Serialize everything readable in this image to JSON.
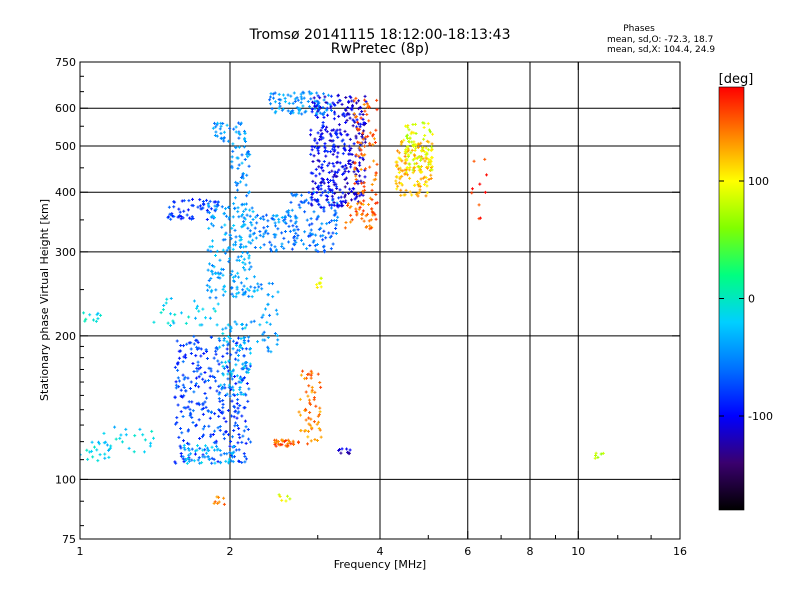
{
  "chart_data": {
    "type": "scatter",
    "title": "Tromsø 20141115 18:12:00-18:13:43",
    "subtitle": "RwPretec (8p)",
    "phase_info": {
      "heading": "Phases",
      "line_o": "mean, sd,O: -72.3, 18.7",
      "line_x": "mean, sd,X: 104.4, 24.9"
    },
    "xlabel": "Frequency [MHz]",
    "ylabel": "Stationary phase Virtual Height [km]",
    "x_scale": "log",
    "y_scale": "log",
    "xlim": [
      1,
      16
    ],
    "ylim": [
      75,
      750
    ],
    "xticks": [
      {
        "value": 1,
        "label": "1"
      },
      {
        "value": 2,
        "label": "2"
      },
      {
        "value": 4,
        "label": "4"
      },
      {
        "value": 6,
        "label": "6"
      },
      {
        "value": 8,
        "label": "8"
      },
      {
        "value": 10,
        "label": "10"
      },
      {
        "value": 16,
        "label": "16"
      }
    ],
    "yticks": [
      {
        "value": 75,
        "label": "75"
      },
      {
        "value": 100,
        "label": "100"
      },
      {
        "value": 200,
        "label": "200"
      },
      {
        "value": 300,
        "label": "300"
      },
      {
        "value": 400,
        "label": "400"
      },
      {
        "value": 500,
        "label": "500"
      },
      {
        "value": 600,
        "label": "600"
      },
      {
        "value": 750,
        "label": "750"
      }
    ],
    "grid_x": [
      2,
      4,
      6,
      8,
      10
    ],
    "grid_y": [
      100,
      200,
      300,
      400,
      500,
      600
    ],
    "grid": true,
    "colorbar": {
      "label": "[deg]",
      "range": [
        -180,
        180
      ],
      "ticks": [
        {
          "value": 100,
          "label": "100"
        },
        {
          "value": 0,
          "label": "0"
        },
        {
          "value": -100,
          "label": "-100"
        }
      ],
      "stops": [
        "#000000",
        "#3a006e",
        "#0000ff",
        "#0070ff",
        "#00d0ff",
        "#00ff80",
        "#80ff00",
        "#ffff00",
        "#ff8000",
        "#ff0000"
      ]
    },
    "clusters": [
      {
        "fmin": 1.0,
        "fmax": 1.1,
        "hmin": 212,
        "hmax": 225,
        "phase": -10,
        "count": 10
      },
      {
        "fmin": 1.0,
        "fmax": 1.15,
        "hmin": 108,
        "hmax": 125,
        "phase": -15,
        "count": 22
      },
      {
        "fmin": 1.15,
        "fmax": 1.45,
        "hmin": 112,
        "hmax": 130,
        "phase": -20,
        "count": 20
      },
      {
        "fmin": 1.35,
        "fmax": 1.9,
        "hmin": 210,
        "hmax": 240,
        "phase": -20,
        "count": 30
      },
      {
        "fmin": 1.5,
        "fmax": 1.9,
        "hmin": 350,
        "hmax": 390,
        "phase": -80,
        "count": 60
      },
      {
        "fmin": 1.55,
        "fmax": 2.2,
        "hmin": 108,
        "hmax": 200,
        "phase": -75,
        "count": 320
      },
      {
        "fmin": 1.9,
        "fmax": 2.2,
        "hmin": 150,
        "hmax": 215,
        "phase": -30,
        "count": 80
      },
      {
        "fmin": 1.6,
        "fmax": 2.05,
        "hmin": 108,
        "hmax": 118,
        "phase": -30,
        "count": 50
      },
      {
        "fmin": 1.8,
        "fmax": 2.25,
        "hmin": 240,
        "hmax": 380,
        "phase": -40,
        "count": 180
      },
      {
        "fmin": 1.85,
        "fmax": 2.15,
        "hmin": 505,
        "hmax": 560,
        "phase": -45,
        "count": 40
      },
      {
        "fmin": 2.0,
        "fmax": 2.2,
        "hmin": 380,
        "hmax": 500,
        "phase": -45,
        "count": 40
      },
      {
        "fmin": 2.2,
        "fmax": 2.6,
        "hmin": 300,
        "hmax": 360,
        "phase": -50,
        "count": 60
      },
      {
        "fmin": 2.2,
        "fmax": 2.5,
        "hmin": 185,
        "hmax": 260,
        "phase": -40,
        "count": 40
      },
      {
        "fmin": 2.4,
        "fmax": 3.2,
        "hmin": 580,
        "hmax": 650,
        "phase": -45,
        "count": 90
      },
      {
        "fmin": 2.6,
        "fmax": 3.3,
        "hmin": 300,
        "hmax": 400,
        "phase": -60,
        "count": 120
      },
      {
        "fmin": 2.9,
        "fmax": 3.4,
        "hmin": 370,
        "hmax": 640,
        "phase": -100,
        "count": 220
      },
      {
        "fmin": 3.4,
        "fmax": 3.75,
        "hmin": 380,
        "hmax": 640,
        "phase": -110,
        "count": 130
      },
      {
        "fmin": 3.55,
        "fmax": 3.95,
        "hmin": 350,
        "hmax": 640,
        "phase": 150,
        "count": 90
      },
      {
        "fmin": 3.4,
        "fmax": 3.9,
        "hmin": 335,
        "hmax": 380,
        "phase": 140,
        "count": 30
      },
      {
        "fmin": 4.3,
        "fmax": 5.1,
        "hmin": 390,
        "hmax": 520,
        "phase": 120,
        "count": 130
      },
      {
        "fmin": 4.5,
        "fmax": 5.1,
        "hmin": 440,
        "hmax": 560,
        "phase": 90,
        "count": 80
      },
      {
        "fmin": 2.45,
        "fmax": 2.75,
        "hmin": 117,
        "hmax": 121,
        "phase": 150,
        "count": 30
      },
      {
        "fmin": 2.75,
        "fmax": 3.05,
        "hmin": 118,
        "hmax": 170,
        "phase": 140,
        "count": 60
      },
      {
        "fmin": 2.95,
        "fmax": 3.1,
        "hmin": 250,
        "hmax": 265,
        "phase": 90,
        "count": 8
      },
      {
        "fmin": 3.3,
        "fmax": 3.5,
        "hmin": 112,
        "hmax": 116,
        "phase": -120,
        "count": 10
      },
      {
        "fmin": 1.85,
        "fmax": 1.95,
        "hmin": 88,
        "hmax": 93,
        "phase": 140,
        "count": 8
      },
      {
        "fmin": 2.5,
        "fmax": 2.65,
        "hmin": 90,
        "hmax": 93,
        "phase": 90,
        "count": 6
      },
      {
        "fmin": 6.1,
        "fmax": 6.6,
        "hmin": 350,
        "hmax": 470,
        "phase": 170,
        "count": 10
      },
      {
        "fmin": 10.8,
        "fmax": 11.3,
        "hmin": 110,
        "hmax": 114,
        "phase": 80,
        "count": 6
      }
    ]
  }
}
